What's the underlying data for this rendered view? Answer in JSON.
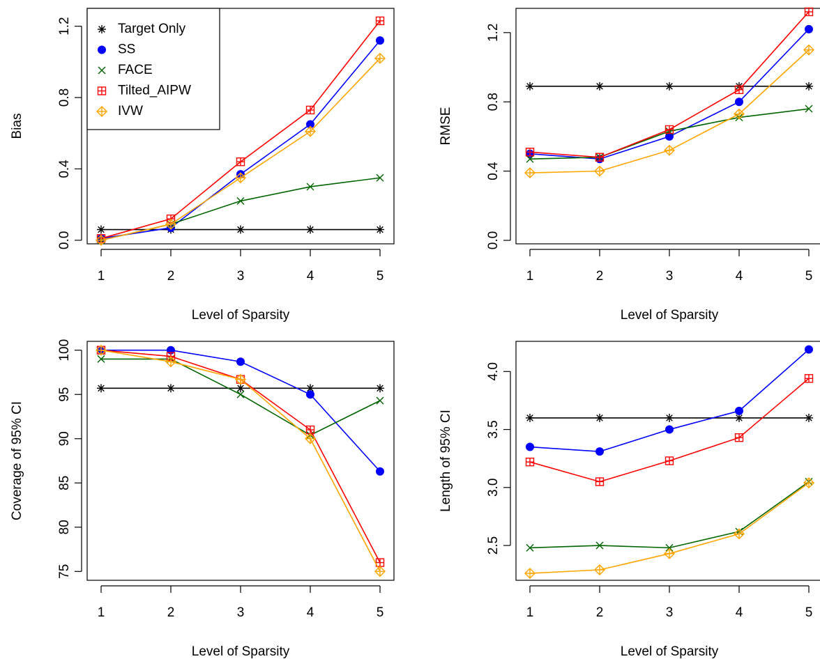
{
  "legend": {
    "placement": "top-left of first panel",
    "entries": [
      {
        "name": "Target Only",
        "color": "#000000",
        "marker": "asterisk"
      },
      {
        "name": "SS",
        "color": "#0000FF",
        "marker": "filled-circle"
      },
      {
        "name": "FACE",
        "color": "#006400",
        "marker": "cross"
      },
      {
        "name": "Tilted_AIPW",
        "color": "#FF0000",
        "marker": "boxed-plus"
      },
      {
        "name": "IVW",
        "color": "#FFA500",
        "marker": "diamond-plus"
      }
    ]
  },
  "chart_data": [
    {
      "type": "line",
      "xlabel": "Level of Sparsity",
      "ylabel": "Bias",
      "x": [
        1,
        2,
        3,
        4,
        5
      ],
      "xticks": [
        "1",
        "2",
        "3",
        "4",
        "5"
      ],
      "ylim": [
        -0.02,
        1.3
      ],
      "yticks": [
        "0.0",
        "0.4",
        "0.8",
        "1.2"
      ],
      "ytick_values": [
        0.0,
        0.4,
        0.8,
        1.2
      ],
      "grid": false,
      "legend": true,
      "series": [
        {
          "name": "Target Only",
          "values": [
            0.06,
            0.06,
            0.06,
            0.06,
            0.06
          ]
        },
        {
          "name": "SS",
          "values": [
            0.01,
            0.07,
            0.37,
            0.65,
            1.12
          ]
        },
        {
          "name": "FACE",
          "values": [
            0.0,
            0.09,
            0.22,
            0.3,
            0.35
          ]
        },
        {
          "name": "Tilted_AIPW",
          "values": [
            0.01,
            0.12,
            0.44,
            0.73,
            1.23
          ]
        },
        {
          "name": "IVW",
          "values": [
            0.0,
            0.09,
            0.35,
            0.61,
            1.02
          ]
        }
      ]
    },
    {
      "type": "line",
      "xlabel": "Level of Sparsity",
      "ylabel": "RMSE",
      "x": [
        1,
        2,
        3,
        4,
        5
      ],
      "xticks": [
        "1",
        "2",
        "3",
        "4",
        "5"
      ],
      "ylim": [
        -0.02,
        1.34
      ],
      "yticks": [
        "0.0",
        "0.4",
        "0.8",
        "1.2"
      ],
      "ytick_values": [
        0.0,
        0.4,
        0.8,
        1.2
      ],
      "grid": false,
      "legend": false,
      "series": [
        {
          "name": "Target Only",
          "values": [
            0.89,
            0.89,
            0.89,
            0.89,
            0.89
          ]
        },
        {
          "name": "SS",
          "values": [
            0.5,
            0.47,
            0.6,
            0.8,
            1.22
          ]
        },
        {
          "name": "FACE",
          "values": [
            0.47,
            0.48,
            0.63,
            0.71,
            0.76
          ]
        },
        {
          "name": "Tilted_AIPW",
          "values": [
            0.51,
            0.48,
            0.64,
            0.87,
            1.32
          ]
        },
        {
          "name": "IVW",
          "values": [
            0.39,
            0.4,
            0.52,
            0.73,
            1.1
          ]
        }
      ]
    },
    {
      "type": "line",
      "xlabel": "Level of Sparsity",
      "ylabel": "Coverage of 95% CI",
      "x": [
        1,
        2,
        3,
        4,
        5
      ],
      "xticks": [
        "1",
        "2",
        "3",
        "4",
        "5"
      ],
      "ylim": [
        74.0,
        101.0
      ],
      "yticks": [
        "75",
        "80",
        "85",
        "90",
        "95",
        "100"
      ],
      "ytick_values": [
        75,
        80,
        85,
        90,
        95,
        100
      ],
      "grid": false,
      "legend": false,
      "series": [
        {
          "name": "Target Only",
          "values": [
            95.7,
            95.7,
            95.7,
            95.7,
            95.7
          ]
        },
        {
          "name": "SS",
          "values": [
            100.0,
            100.0,
            98.7,
            95.0,
            86.3
          ]
        },
        {
          "name": "FACE",
          "values": [
            99.0,
            99.0,
            95.0,
            90.4,
            94.3
          ]
        },
        {
          "name": "Tilted_AIPW",
          "values": [
            100.0,
            99.3,
            96.7,
            91.0,
            76.0
          ]
        },
        {
          "name": "IVW",
          "values": [
            100.0,
            98.7,
            96.7,
            90.0,
            75.0
          ]
        }
      ]
    },
    {
      "type": "line",
      "xlabel": "Level of Sparsity",
      "ylabel": "Length of 95% CI",
      "x": [
        1,
        2,
        3,
        4,
        5
      ],
      "xticks": [
        "1",
        "2",
        "3",
        "4",
        "5"
      ],
      "ylim": [
        2.2,
        4.26
      ],
      "yticks": [
        "2.5",
        "3.0",
        "3.5",
        "4.0"
      ],
      "ytick_values": [
        2.5,
        3.0,
        3.5,
        4.0
      ],
      "grid": false,
      "legend": false,
      "series": [
        {
          "name": "Target Only",
          "values": [
            3.6,
            3.6,
            3.6,
            3.6,
            3.6
          ]
        },
        {
          "name": "SS",
          "values": [
            3.35,
            3.31,
            3.5,
            3.66,
            4.19
          ]
        },
        {
          "name": "FACE",
          "values": [
            2.48,
            2.5,
            2.48,
            2.62,
            3.05
          ]
        },
        {
          "name": "Tilted_AIPW",
          "values": [
            3.22,
            3.05,
            3.23,
            3.43,
            3.94
          ]
        },
        {
          "name": "IVW",
          "values": [
            2.26,
            2.29,
            2.43,
            2.6,
            3.04
          ]
        }
      ]
    }
  ]
}
